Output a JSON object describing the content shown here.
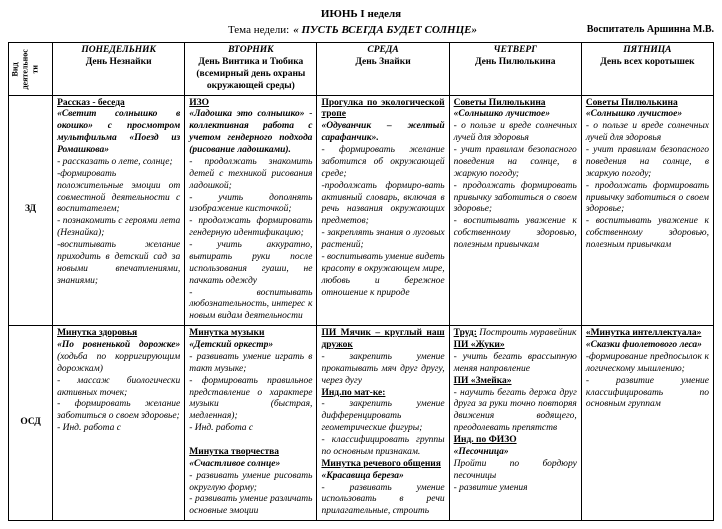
{
  "header": {
    "week": "ИЮНЬ I неделя",
    "themeLabel": "Тема недели:",
    "themeTitle": "« ПУСТЬ ВСЕГДА БУДЕТ СОЛНЦЕ»",
    "teacher": "Воспитатель Аршинна М.В."
  },
  "sideLabel": "Вид\nдеятельнос\nти",
  "days": {
    "mon": {
      "top": "ПОНЕДЕЛЬНИК",
      "sub": "День Незнайки"
    },
    "tue": {
      "top": "ВТОРНИК",
      "sub": "День Винтика и Тюбика\n(всемирный день охраны окружающей среды)"
    },
    "wed": {
      "top": "СРЕДА",
      "sub": "День Знайки"
    },
    "thu": {
      "top": "ЧЕТВЕРГ",
      "sub": "День Пилюлькина"
    },
    "fri": {
      "top": "ПЯТНИЦА",
      "sub": "День всех коротышек"
    }
  },
  "rows": {
    "zd": {
      "label": "ЗД",
      "mon": {
        "heading": "Рассказ - беседа",
        "quote": "«Светит солнышко в окошко» с просмотром мультфильма «Поезд из Ромашкова»",
        "body": "- рассказать о лете, солнце;\n-формировать положительные эмоции от совместной деятельности с воспитателем;\n- познакомить с героями лета (Незнайка);\n-воспитывать желание приходить в детский сад за новыми впечатлениями, знаниями;"
      },
      "tue": {
        "heading": "ИЗО",
        "quote": "«Ладошка это солнышко» - коллективная работа с учетом гендерного подхода (рисование ладошками).",
        "body": "- продолжать знакомить детей с техникой рисования ладошкой;\n- учить дополнять изображение кисточкой;\n- продолжать формировать гендерную идентификацию;\n- учить аккуратно, вытирать руки после использования гуаши, не пачкать одежду\n- воспитывать любознательность, интерес к новым видам деятельности"
      },
      "wed": {
        "heading": "Прогулка по экологической тропе",
        "quote": "«Одуванчик – желтый сарафанчик».",
        "body": "- формировать желание заботится об окружающей среде;\n-продолжать формиро-вать активный словарь, включая в речь названия окружающих предметов;\n- закреплять знания о луговых растений;\n- воспитывать умение видеть красоту в окружающем мире, любовь и бережное отношение к природе"
      },
      "thu": {
        "heading": "Советы Пилюлькина",
        "quote": "«Солнышко лучистое»",
        "body": "- о пользе и вреде солнечных лучей для здоровья\n- учит правилам безопасного поведения на солнце, в жаркую погоду;\n- продолжать формировать привычку заботиться о своем здоровье;\n- воспитывать уважение к собственному здоровью, полезным привычкам"
      },
      "fri": {
        "heading": "Советы Пилюлькина",
        "quote": "«Солнышко лучистое»",
        "body": "- о пользе и вреде солнечных лучей для здоровья\n- учит правилам безопасного поведения на солнце, в жаркую погоду;\n- продолжать формировать привычку заботиться о своем здоровье;\n- воспитывать уважение к собственному здоровью, полезным привычкам"
      }
    },
    "osd": {
      "label": "ОСД",
      "mon": {
        "h1": "Минутка здоровья",
        "q1": "«По ровненькой дорожке»",
        "b1": " (ходьба по корригирующим дорожкам)\n- массаж биологически активных точек;\n- формировать желание заботиться о своем здоровье;\n- Инд. работа с"
      },
      "tue": {
        "h1": "Минутка музыки",
        "q1": "«Детский оркестр»",
        "b1": "- развивать умение играть в такт музыке;\n- формировать правильное представление о характере музыки (быстрая, медленная);\n- Инд. работа с",
        "h2": "Минутка творчества",
        "q2": "«Счастливое солнце»",
        "b2": "- развивать умение рисовать округлую форму;\n- развивать умение различать основные эмоции"
      },
      "wed": {
        "h1": "ПИ Мячик – круглый наш дружок",
        "b1": "- закрепить умение прокатывать мяч друг другу, через дугу",
        "h2": "Инд.по мат-ке:",
        "b2": "- закрепить умение дифференцировать геометрические фигуры;\n- классифицировать группы по основным признакам.",
        "h3": "Минутка речевого общения",
        "q3": "«Красавица береза»",
        "b3": "- развивать умение использовать в речи прилагательные, строить"
      },
      "thu": {
        "h1": "Труд:",
        "t1": " Построить муравейник",
        "h2": "ПИ «Жуки»",
        "b2": "- учить бегать врассыпную меняя направление",
        "h3": "ПИ «Змейка»",
        "b3": "- научить бегать держа друг друга за руки точно повторяя движения водящего, преодолевать препятств",
        "h4": "Инд. по ФИЗО",
        "q4": "«Песочница»",
        "b4": "Пройти по бордюру песочницы\n- развитие умения"
      },
      "fri": {
        "h1": "«Минутка интеллектуала»",
        "q1": "«Сказки фиолетового леса»",
        "b1": "-формирование предпосылок к логическому мышлению;\n- развитие умение классифицировать по основным группам"
      }
    }
  }
}
